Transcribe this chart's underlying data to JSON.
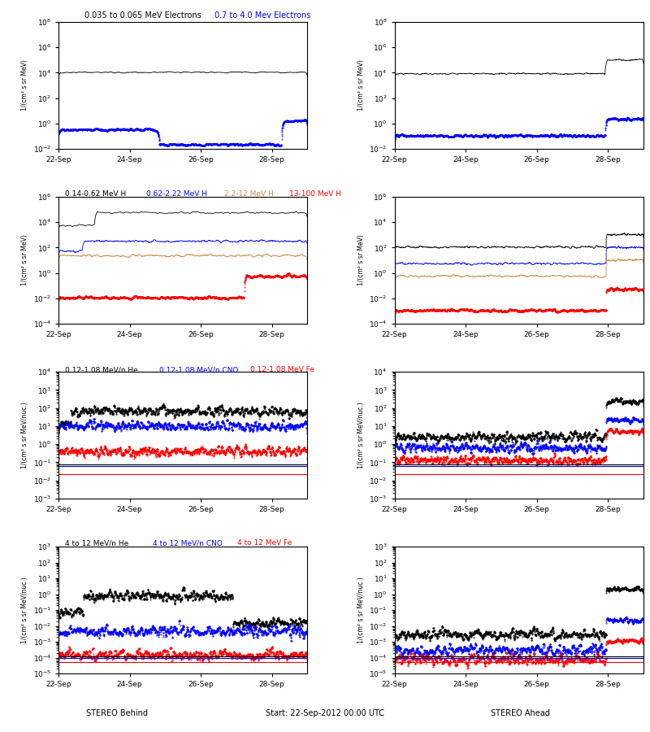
{
  "title_row1_left": "0.035 to 0.065 MeV Electrons",
  "title_row1_right": "0.7 to 4.0 Mev Electrons",
  "title_row2_left_parts": [
    "0.14-0.62 MeV H",
    "0.62-2.22 MeV H",
    "2.2-12 MeV H",
    "13-100 MeV H"
  ],
  "title_row2_colors": [
    "black",
    "blue",
    "#cc8844",
    "red"
  ],
  "title_row3_left_parts": [
    "0.12-1.08 MeV/n He",
    "0.12-1.08 MeV/n CNO",
    "0.12-1.08 MeV Fe"
  ],
  "title_row3_colors": [
    "black",
    "blue",
    "red"
  ],
  "title_row4_left_parts": [
    "4 to 12 MeV/n He",
    "4 to 12 MeV/n CNO",
    "4 to 12 MeV Fe"
  ],
  "title_row4_colors": [
    "black",
    "blue",
    "red"
  ],
  "xlabel_left": "STEREO Behind",
  "xlabel_center": "Start: 22-Sep-2012 00:00 UTC",
  "xlabel_right": "STEREO Ahead",
  "xtick_labels": [
    "22-Sep",
    "24-Sep",
    "26-Sep",
    "28-Sep"
  ],
  "ylabel_electrons": "1/(cm² s sr MeV)",
  "ylabel_H": "1/(cm² s sr MeV)",
  "ylabel_heavy": "1/(cm² s sr MeV/nuc.)",
  "background_color": "white",
  "line_colors": {
    "black": "#000000",
    "blue": "#0000ff",
    "brown": "#cc8844",
    "red": "#ff0000"
  }
}
